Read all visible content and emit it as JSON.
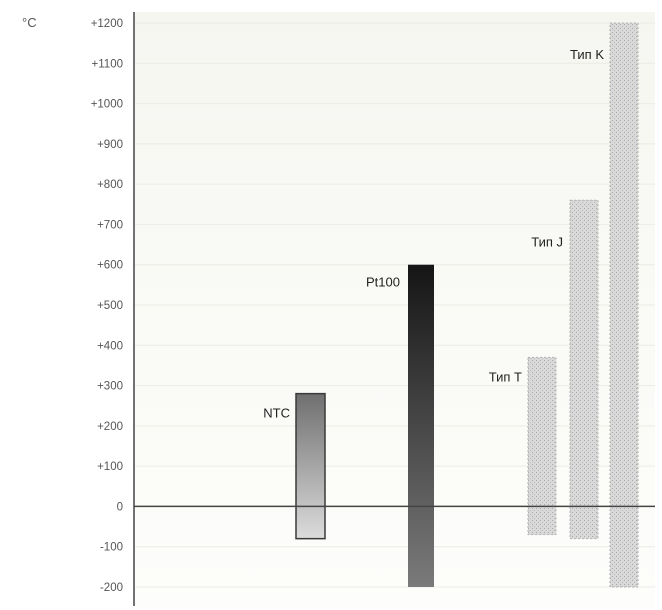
{
  "chart_data": {
    "type": "bar",
    "title": "",
    "xlabel": "",
    "ylabel": "°C",
    "ylim": [
      -230,
      1230
    ],
    "yticks": [
      {
        "value": 1200,
        "label": "+1200"
      },
      {
        "value": 1100,
        "label": "+1100"
      },
      {
        "value": 1000,
        "label": "+1000"
      },
      {
        "value": 900,
        "label": "+900"
      },
      {
        "value": 800,
        "label": "+800"
      },
      {
        "value": 700,
        "label": "+700"
      },
      {
        "value": 600,
        "label": "+600"
      },
      {
        "value": 500,
        "label": "+500"
      },
      {
        "value": 400,
        "label": "+400"
      },
      {
        "value": 300,
        "label": "+300"
      },
      {
        "value": 200,
        "label": "+200"
      },
      {
        "value": 100,
        "label": "+100"
      },
      {
        "value": 0,
        "label": "0"
      },
      {
        "value": -100,
        "label": "-100"
      },
      {
        "value": -200,
        "label": "-200"
      }
    ],
    "grid": true,
    "series": [
      {
        "name": "NTC",
        "low": -80,
        "high": 280,
        "color": "#8f8f8f",
        "style": "gradient-gray"
      },
      {
        "name": "Pt100",
        "low": -200,
        "high": 600,
        "color": "#202020",
        "style": "gradient-dark"
      },
      {
        "name": "Тип T",
        "low": -70,
        "high": 370,
        "color": "#cfcfcf",
        "style": "dotted"
      },
      {
        "name": "Тип J",
        "low": -80,
        "high": 760,
        "color": "#cfcfcf",
        "style": "dotted"
      },
      {
        "name": "Тип K",
        "low": -200,
        "high": 1200,
        "color": "#cfcfcf",
        "style": "dotted"
      }
    ]
  }
}
